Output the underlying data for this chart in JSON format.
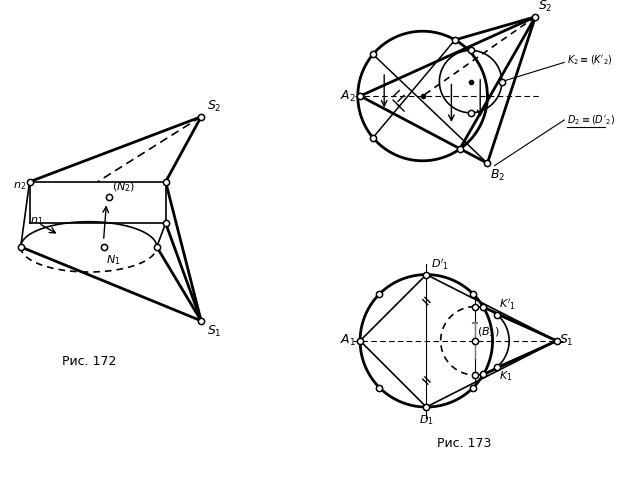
{
  "background": "#ffffff",
  "lw": 1.2,
  "lw_thick": 2.0,
  "dot_size": 4.5
}
